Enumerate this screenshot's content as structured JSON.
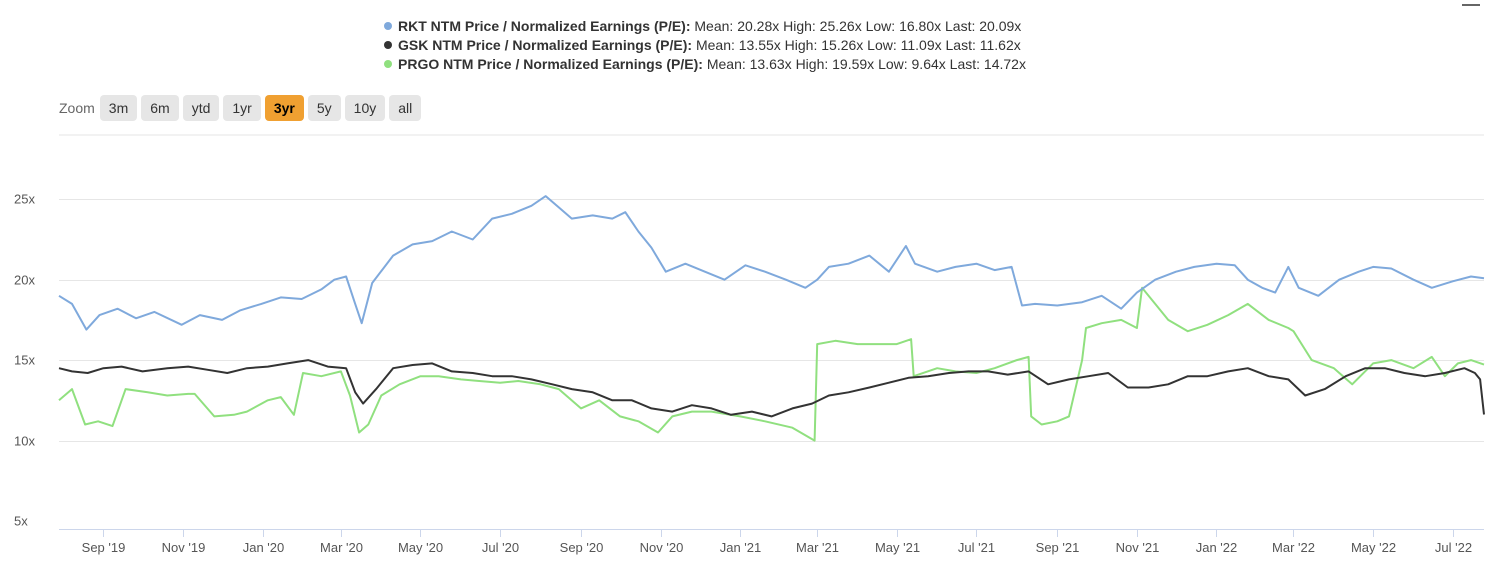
{
  "legend": [
    {
      "name": "RKT NTM Price / Normalized Earnings (P/E):",
      "stats": "Mean: 20.28x High: 25.26x Low: 16.80x Last: 20.09x",
      "color": "#7fa9dc"
    },
    {
      "name": "GSK NTM Price / Normalized Earnings (P/E):",
      "stats": "Mean: 13.55x High: 15.26x Low: 11.09x Last: 11.62x",
      "color": "#333333"
    },
    {
      "name": "PRGO NTM Price / Normalized Earnings (P/E):",
      "stats": "Mean: 13.63x High: 19.59x Low: 9.64x Last: 14.72x",
      "color": "#90e07f"
    }
  ],
  "zoom": {
    "label": "Zoom",
    "buttons": [
      "3m",
      "6m",
      "ytd",
      "1yr",
      "3yr",
      "5y",
      "10y",
      "all"
    ],
    "active": "3yr"
  },
  "chart_data": {
    "type": "line",
    "x_tick_labels": [
      "Sep '19",
      "Nov '19",
      "Jan '20",
      "Mar '20",
      "May '20",
      "Jul '20",
      "Sep '20",
      "Nov '20",
      "Jan '21",
      "Mar '21",
      "May '21",
      "Jul '21",
      "Sep '21",
      "Nov '21",
      "Jan '22",
      "Mar '22",
      "May '22",
      "Jul '22"
    ],
    "x_range": [
      "2019-07-29",
      "2022-07-25"
    ],
    "y_tick_labels": [
      "5x",
      "10x",
      "15x",
      "20x",
      "25x"
    ],
    "y_ticks": [
      5,
      10,
      15,
      20,
      25
    ],
    "ylim": [
      4.5,
      29
    ],
    "grid": true,
    "series": [
      {
        "name": "RKT NTM Price / Normalized Earnings (P/E)",
        "color": "#7fa9dc",
        "x": [
          "2019-07-29",
          "2019-08-08",
          "2019-08-19",
          "2019-08-29",
          "2019-09-12",
          "2019-09-26",
          "2019-10-10",
          "2019-10-31",
          "2019-11-14",
          "2019-12-01",
          "2019-12-15",
          "2019-12-31",
          "2020-01-15",
          "2020-01-31",
          "2020-02-15",
          "2020-02-25",
          "2020-03-05",
          "2020-03-12",
          "2020-03-17",
          "2020-03-25",
          "2020-04-10",
          "2020-04-25",
          "2020-05-10",
          "2020-05-25",
          "2020-06-10",
          "2020-06-25",
          "2020-07-10",
          "2020-07-25",
          "2020-08-05",
          "2020-08-15",
          "2020-08-25",
          "2020-09-10",
          "2020-09-25",
          "2020-10-05",
          "2020-10-15",
          "2020-10-25",
          "2020-11-05",
          "2020-11-20",
          "2020-12-05",
          "2020-12-20",
          "2021-01-05",
          "2021-01-20",
          "2021-02-05",
          "2021-02-20",
          "2021-03-01",
          "2021-03-10",
          "2021-03-25",
          "2021-04-10",
          "2021-04-25",
          "2021-05-08",
          "2021-05-15",
          "2021-06-01",
          "2021-06-15",
          "2021-07-01",
          "2021-07-15",
          "2021-07-28",
          "2021-08-05",
          "2021-08-15",
          "2021-09-01",
          "2021-09-20",
          "2021-10-05",
          "2021-10-20",
          "2021-11-01",
          "2021-11-15",
          "2021-12-01",
          "2021-12-15",
          "2022-01-01",
          "2022-01-15",
          "2022-01-25",
          "2022-02-05",
          "2022-02-15",
          "2022-02-25",
          "2022-03-05",
          "2022-03-20",
          "2022-04-05",
          "2022-04-20",
          "2022-05-01",
          "2022-05-15",
          "2022-06-01",
          "2022-06-15",
          "2022-07-01",
          "2022-07-15",
          "2022-07-25"
        ],
        "y": [
          19.0,
          18.5,
          16.9,
          17.8,
          18.2,
          17.6,
          18.0,
          17.2,
          17.8,
          17.5,
          18.1,
          18.5,
          18.9,
          18.8,
          19.4,
          20.0,
          20.2,
          18.5,
          17.3,
          19.8,
          21.5,
          22.2,
          22.4,
          23.0,
          22.5,
          23.8,
          24.1,
          24.6,
          25.2,
          24.5,
          23.8,
          24.0,
          23.8,
          24.2,
          23.0,
          22.0,
          20.5,
          21.0,
          20.5,
          20.0,
          20.9,
          20.5,
          20.0,
          19.5,
          20.0,
          20.8,
          21.0,
          21.5,
          20.5,
          22.1,
          21.0,
          20.5,
          20.8,
          21.0,
          20.6,
          20.8,
          18.4,
          18.5,
          18.4,
          18.6,
          19.0,
          18.2,
          19.2,
          20.0,
          20.5,
          20.8,
          21.0,
          20.9,
          20.0,
          19.5,
          19.2,
          20.8,
          19.5,
          19.0,
          20.0,
          20.5,
          20.8,
          20.7,
          20.0,
          19.5,
          19.9,
          20.2,
          20.09
        ]
      },
      {
        "name": "GSK NTM Price / Normalized Earnings (P/E)",
        "color": "#333333",
        "x": [
          "2019-07-29",
          "2019-08-08",
          "2019-08-20",
          "2019-09-01",
          "2019-09-15",
          "2019-10-01",
          "2019-10-20",
          "2019-11-05",
          "2019-11-20",
          "2019-12-05",
          "2019-12-20",
          "2020-01-05",
          "2020-01-20",
          "2020-02-05",
          "2020-02-20",
          "2020-03-05",
          "2020-03-12",
          "2020-03-18",
          "2020-03-28",
          "2020-04-10",
          "2020-04-25",
          "2020-05-10",
          "2020-05-25",
          "2020-06-10",
          "2020-06-25",
          "2020-07-10",
          "2020-07-25",
          "2020-08-10",
          "2020-08-25",
          "2020-09-10",
          "2020-09-25",
          "2020-10-10",
          "2020-10-25",
          "2020-11-10",
          "2020-11-25",
          "2020-12-10",
          "2020-12-25",
          "2021-01-10",
          "2021-01-25",
          "2021-02-10",
          "2021-02-25",
          "2021-03-10",
          "2021-03-25",
          "2021-04-10",
          "2021-04-25",
          "2021-05-10",
          "2021-05-25",
          "2021-06-10",
          "2021-06-25",
          "2021-07-10",
          "2021-07-25",
          "2021-08-10",
          "2021-08-25",
          "2021-09-10",
          "2021-09-25",
          "2021-10-10",
          "2021-10-25",
          "2021-11-10",
          "2021-11-25",
          "2021-12-10",
          "2021-12-25",
          "2022-01-10",
          "2022-01-25",
          "2022-02-10",
          "2022-02-25",
          "2022-03-10",
          "2022-03-25",
          "2022-04-10",
          "2022-04-25",
          "2022-05-10",
          "2022-05-25",
          "2022-06-10",
          "2022-06-25",
          "2022-07-10",
          "2022-07-18",
          "2022-07-22",
          "2022-07-25"
        ],
        "y": [
          14.5,
          14.3,
          14.2,
          14.5,
          14.6,
          14.3,
          14.5,
          14.6,
          14.4,
          14.2,
          14.5,
          14.6,
          14.8,
          15.0,
          14.6,
          14.5,
          13.0,
          12.3,
          13.2,
          14.5,
          14.7,
          14.8,
          14.3,
          14.2,
          14.0,
          14.0,
          13.8,
          13.5,
          13.2,
          13.0,
          12.5,
          12.5,
          12.0,
          11.8,
          12.2,
          12.0,
          11.6,
          11.8,
          11.5,
          12.0,
          12.3,
          12.8,
          13.0,
          13.3,
          13.6,
          13.9,
          14.0,
          14.2,
          14.3,
          14.3,
          14.1,
          14.3,
          13.5,
          13.8,
          14.0,
          14.2,
          13.3,
          13.3,
          13.5,
          14.0,
          14.0,
          14.3,
          14.5,
          14.0,
          13.8,
          12.8,
          13.2,
          14.0,
          14.5,
          14.5,
          14.2,
          14.0,
          14.2,
          14.5,
          14.2,
          13.8,
          11.62
        ]
      },
      {
        "name": "PRGO NTM Price / Normalized Earnings (P/E)",
        "color": "#90e07f",
        "x": [
          "2019-07-29",
          "2019-08-08",
          "2019-08-18",
          "2019-08-28",
          "2019-09-08",
          "2019-09-18",
          "2019-10-05",
          "2019-10-20",
          "2019-11-05",
          "2019-11-10",
          "2019-11-25",
          "2019-12-10",
          "2019-12-20",
          "2020-01-05",
          "2020-01-15",
          "2020-01-25",
          "2020-02-01",
          "2020-02-15",
          "2020-03-01",
          "2020-03-08",
          "2020-03-15",
          "2020-03-22",
          "2020-04-01",
          "2020-04-15",
          "2020-05-01",
          "2020-05-15",
          "2020-06-01",
          "2020-06-15",
          "2020-07-01",
          "2020-07-15",
          "2020-08-01",
          "2020-08-15",
          "2020-09-01",
          "2020-09-15",
          "2020-10-01",
          "2020-10-15",
          "2020-10-30",
          "2020-11-10",
          "2020-11-25",
          "2020-12-10",
          "2021-01-01",
          "2021-01-20",
          "2021-02-10",
          "2021-02-27",
          "2021-03-01",
          "2021-03-15",
          "2021-04-01",
          "2021-04-15",
          "2021-05-01",
          "2021-05-12",
          "2021-05-14",
          "2021-06-01",
          "2021-06-15",
          "2021-07-01",
          "2021-07-15",
          "2021-08-01",
          "2021-08-10",
          "2021-08-12",
          "2021-08-20",
          "2021-09-01",
          "2021-09-10",
          "2021-09-20",
          "2021-09-23",
          "2021-10-05",
          "2021-10-20",
          "2021-11-01",
          "2021-11-05",
          "2021-11-15",
          "2021-11-25",
          "2021-12-10",
          "2021-12-25",
          "2022-01-10",
          "2022-01-25",
          "2022-02-10",
          "2022-02-25",
          "2022-03-01",
          "2022-03-15",
          "2022-04-01",
          "2022-04-15",
          "2022-05-01",
          "2022-05-15",
          "2022-06-01",
          "2022-06-15",
          "2022-06-25",
          "2022-07-05",
          "2022-07-15",
          "2022-07-25"
        ],
        "y": [
          12.5,
          13.2,
          11.0,
          11.2,
          10.9,
          13.2,
          13.0,
          12.8,
          12.9,
          12.9,
          11.5,
          11.6,
          11.8,
          12.5,
          12.7,
          11.6,
          14.2,
          14.0,
          14.3,
          12.8,
          10.5,
          11.0,
          12.8,
          13.5,
          14.0,
          14.0,
          13.8,
          13.7,
          13.6,
          13.7,
          13.5,
          13.2,
          12.0,
          12.5,
          11.5,
          11.2,
          10.5,
          11.5,
          11.8,
          11.8,
          11.5,
          11.2,
          10.8,
          10.0,
          16.0,
          16.2,
          16.0,
          16.0,
          16.0,
          16.3,
          14.0,
          14.5,
          14.3,
          14.2,
          14.5,
          15.0,
          15.2,
          11.5,
          11.0,
          11.2,
          11.5,
          15.0,
          17.0,
          17.3,
          17.5,
          17.0,
          19.5,
          18.5,
          17.5,
          16.8,
          17.2,
          17.8,
          18.5,
          17.5,
          17.0,
          16.8,
          15.0,
          14.5,
          13.5,
          14.8,
          15.0,
          14.5,
          15.2,
          14.0,
          14.8,
          15.0,
          14.72
        ]
      }
    ]
  }
}
